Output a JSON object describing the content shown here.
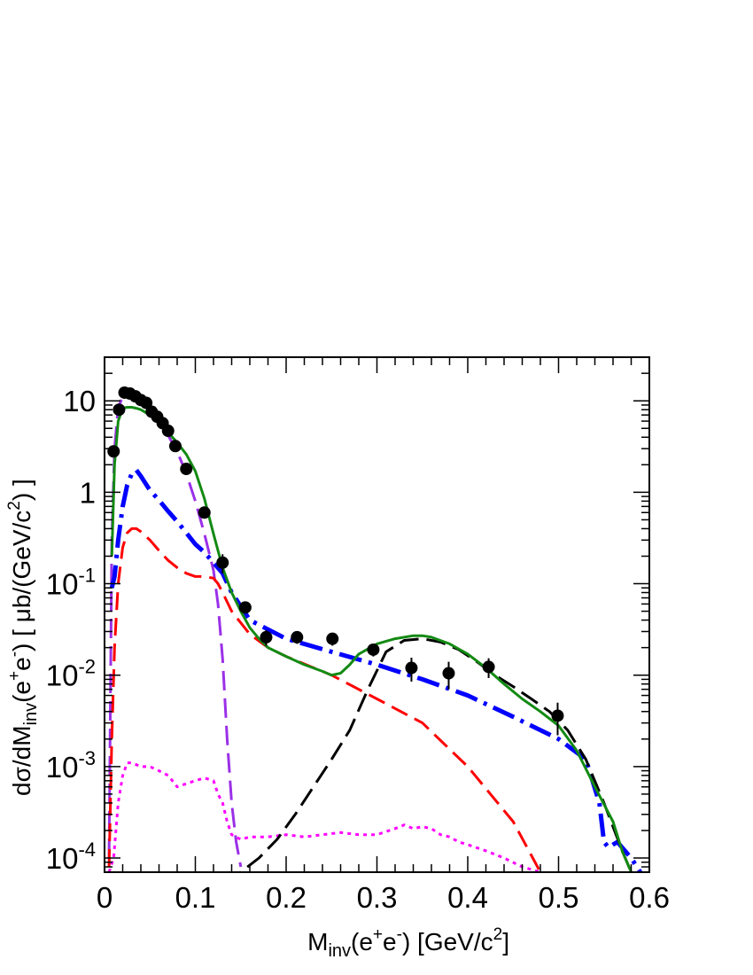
{
  "chart_data": {
    "type": "line",
    "xlabel": "M_inv(e+e-) [GeV/c2]",
    "ylabel": "dσ/dM_inv(e+e-) [ μb/(GeV/c2) ]",
    "xlim": [
      0,
      0.6
    ],
    "ylim": [
      7e-05,
      30
    ],
    "yscale": "log",
    "grid": false,
    "legend": "none",
    "x_ticks": [
      {
        "value": 0,
        "label": "0"
      },
      {
        "value": 0.1,
        "label": "0.1"
      },
      {
        "value": 0.2,
        "label": "0.2"
      },
      {
        "value": 0.3,
        "label": "0.3"
      },
      {
        "value": 0.4,
        "label": "0.4"
      },
      {
        "value": 0.5,
        "label": "0.5"
      },
      {
        "value": 0.6,
        "label": "0.6"
      }
    ],
    "y_ticks": [
      {
        "value": 0.0001,
        "base": "10",
        "exp": "-4"
      },
      {
        "value": 0.001,
        "base": "10",
        "exp": "-3"
      },
      {
        "value": 0.01,
        "base": "10",
        "exp": "-2"
      },
      {
        "value": 0.1,
        "base": "10",
        "exp": "-1"
      },
      {
        "value": 1,
        "base": "1",
        "exp": ""
      },
      {
        "value": 10,
        "base": "10",
        "exp": ""
      }
    ],
    "series": [
      {
        "color": "#9b30e8",
        "dash": "22 9",
        "width": 3,
        "x": [
          0.005,
          0.008,
          0.011,
          0.015,
          0.02,
          0.03,
          0.04,
          0.05,
          0.06,
          0.07,
          0.08,
          0.09,
          0.1,
          0.11,
          0.12,
          0.125,
          0.13,
          0.135,
          0.14,
          0.145,
          0.15
        ],
        "y": [
          0.0001,
          0.3,
          3,
          8.5,
          11,
          11,
          10,
          8,
          6,
          4.2,
          2.8,
          1.6,
          0.8,
          0.35,
          0.14,
          0.06,
          0.015,
          0.002,
          0.0004,
          0.00015,
          8e-05
        ]
      },
      {
        "color": "#0000ff",
        "dash": "26 8 4 8",
        "width": 5,
        "x": [
          0.008,
          0.011,
          0.015,
          0.02,
          0.025,
          0.03,
          0.035,
          0.04,
          0.05,
          0.06,
          0.07,
          0.08,
          0.09,
          0.1,
          0.11,
          0.12,
          0.13,
          0.14,
          0.16,
          0.2,
          0.25,
          0.3,
          0.35,
          0.4,
          0.45,
          0.5,
          0.53,
          0.545,
          0.55,
          0.555,
          0.56,
          0.565,
          0.57,
          0.58,
          0.59
        ],
        "y": [
          0.09,
          0.12,
          0.3,
          0.7,
          1.2,
          1.6,
          1.75,
          1.5,
          1.05,
          0.82,
          0.62,
          0.48,
          0.36,
          0.27,
          0.22,
          0.17,
          0.13,
          0.08,
          0.04,
          0.025,
          0.018,
          0.013,
          0.009,
          0.006,
          0.0035,
          0.002,
          0.0012,
          0.0004,
          0.00015,
          0.00013,
          0.00014,
          0.00015,
          0.00013,
          0.0001,
          7e-05
        ]
      },
      {
        "color": "#ff0000",
        "dash": "20 9",
        "width": 3,
        "x": [
          0.005,
          0.008,
          0.011,
          0.015,
          0.02,
          0.025,
          0.03,
          0.035,
          0.04,
          0.05,
          0.06,
          0.07,
          0.08,
          0.09,
          0.1,
          0.11,
          0.12,
          0.125,
          0.13,
          0.14,
          0.16,
          0.18,
          0.2,
          0.25,
          0.3,
          0.35,
          0.4,
          0.45,
          0.48
        ],
        "y": [
          8e-05,
          0.002,
          0.02,
          0.1,
          0.25,
          0.36,
          0.4,
          0.4,
          0.37,
          0.3,
          0.23,
          0.18,
          0.15,
          0.13,
          0.12,
          0.12,
          0.115,
          0.1,
          0.08,
          0.05,
          0.028,
          0.02,
          0.016,
          0.01,
          0.0055,
          0.003,
          0.001,
          0.00025,
          7e-05
        ]
      },
      {
        "color": "#ff00ff",
        "dash": "4 5",
        "width": 3,
        "x": [
          0.005,
          0.01,
          0.015,
          0.02,
          0.025,
          0.03,
          0.04,
          0.05,
          0.06,
          0.07,
          0.08,
          0.09,
          0.1,
          0.11,
          0.12,
          0.125,
          0.13,
          0.135,
          0.14,
          0.15,
          0.16,
          0.18,
          0.2,
          0.22,
          0.24,
          0.26,
          0.28,
          0.3,
          0.32,
          0.33,
          0.34,
          0.35,
          0.36,
          0.37,
          0.38,
          0.39,
          0.4,
          0.42,
          0.44,
          0.46,
          0.48
        ],
        "y": [
          7e-05,
          0.0001,
          0.0004,
          0.0008,
          0.0011,
          0.0011,
          0.001,
          0.001,
          0.0009,
          0.0008,
          0.0006,
          0.00065,
          0.0007,
          0.00075,
          0.0007,
          0.0005,
          0.0004,
          0.00025,
          0.00018,
          0.00016,
          0.00017,
          0.00017,
          0.00018,
          0.00017,
          0.00018,
          0.00019,
          0.00018,
          0.00018,
          0.00021,
          0.00023,
          0.00021,
          0.00022,
          0.00021,
          0.00018,
          0.00017,
          0.00015,
          0.00014,
          0.00012,
          0.0001,
          8e-05,
          7e-05
        ]
      },
      {
        "color": "#000000",
        "dash": "22 9",
        "width": 3,
        "x": [
          0.13,
          0.15,
          0.17,
          0.19,
          0.21,
          0.23,
          0.25,
          0.27,
          0.29,
          0.31,
          0.33,
          0.35,
          0.37,
          0.39,
          0.41,
          0.43,
          0.45,
          0.47,
          0.49,
          0.51,
          0.53,
          0.55,
          0.57,
          0.58
        ],
        "y": [
          6e-05,
          7e-05,
          0.0001,
          0.00016,
          0.0003,
          0.0006,
          0.0012,
          0.0025,
          0.007,
          0.018,
          0.024,
          0.025,
          0.023,
          0.019,
          0.014,
          0.01,
          0.0075,
          0.0055,
          0.004,
          0.0025,
          0.0012,
          0.0004,
          0.00012,
          7e-05
        ]
      },
      {
        "color": "#138a13",
        "dash": "",
        "width": 3,
        "x": [
          0.008,
          0.011,
          0.015,
          0.02,
          0.025,
          0.03,
          0.035,
          0.04,
          0.05,
          0.06,
          0.07,
          0.08,
          0.09,
          0.1,
          0.11,
          0.12,
          0.13,
          0.14,
          0.15,
          0.16,
          0.17,
          0.18,
          0.2,
          0.22,
          0.24,
          0.25,
          0.26,
          0.27,
          0.28,
          0.3,
          0.32,
          0.34,
          0.35,
          0.36,
          0.38,
          0.4,
          0.42,
          0.44,
          0.46,
          0.48,
          0.5,
          0.52,
          0.54,
          0.56,
          0.57,
          0.58
        ],
        "y": [
          0.2,
          2,
          6,
          8.3,
          8.5,
          8.5,
          8.3,
          8,
          7,
          5.8,
          4.5,
          3.5,
          2.6,
          1.7,
          0.85,
          0.35,
          0.15,
          0.08,
          0.05,
          0.033,
          0.025,
          0.02,
          0.016,
          0.013,
          0.011,
          0.01,
          0.0105,
          0.013,
          0.017,
          0.022,
          0.025,
          0.027,
          0.027,
          0.026,
          0.022,
          0.017,
          0.012,
          0.008,
          0.0055,
          0.004,
          0.0028,
          0.0015,
          0.0006,
          0.00025,
          0.00012,
          7e-05
        ]
      }
    ],
    "data_points": {
      "color": "#000000",
      "x": [
        0.01,
        0.016,
        0.022,
        0.028,
        0.034,
        0.04,
        0.046,
        0.052,
        0.058,
        0.064,
        0.07,
        0.078,
        0.09,
        0.11,
        0.13,
        0.155,
        0.178,
        0.212,
        0.251,
        0.296,
        0.338,
        0.379,
        0.423,
        0.499
      ],
      "y": [
        2.8,
        8,
        12.3,
        12,
        11.2,
        10.2,
        9.5,
        7.6,
        6.7,
        5.7,
        4.7,
        3.2,
        1.8,
        0.6,
        0.17,
        0.055,
        0.026,
        0.026,
        0.025,
        0.019,
        0.012,
        0.0105,
        0.0123,
        0.0036
      ],
      "err": [
        0.3,
        0.6,
        0.8,
        0.8,
        0.7,
        0.7,
        0.6,
        0.5,
        0.4,
        0.4,
        0.3,
        0.2,
        0.15,
        0.06,
        0.04,
        0.008,
        0.005,
        0.004,
        0.004,
        0.003,
        0.0035,
        0.0035,
        0.003,
        0.0014
      ]
    }
  }
}
